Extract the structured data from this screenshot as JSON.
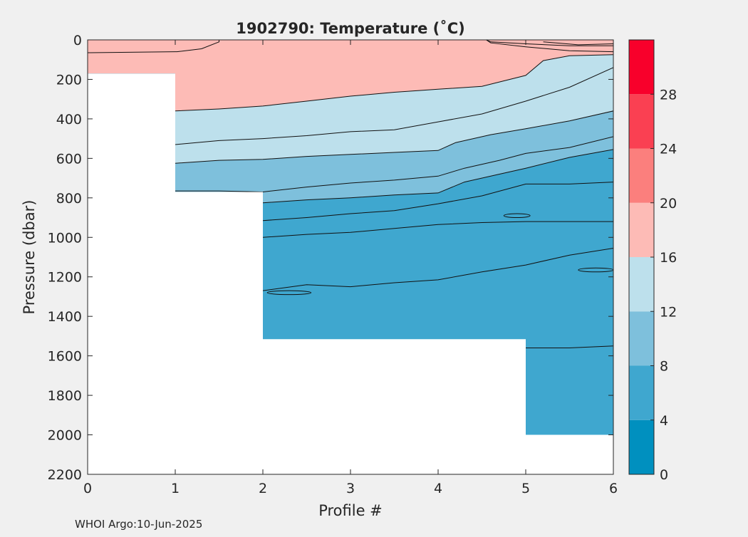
{
  "chart_data": {
    "type": "heatmap",
    "subtype": "filled-contour-section",
    "title": "1902790:  Temperature (˚C)",
    "xlabel": "Profile #",
    "ylabel": "Pressure (dbar)",
    "footer": "WHOI Argo:10-Jun-2025",
    "xlim": [
      0,
      6
    ],
    "ylim": [
      0,
      2200
    ],
    "y_reversed": true,
    "xticks": [
      0,
      1,
      2,
      3,
      4,
      5,
      6
    ],
    "yticks": [
      0,
      200,
      400,
      600,
      800,
      1000,
      1200,
      1400,
      1600,
      1800,
      2000,
      2200
    ],
    "grid": false,
    "colorbar": {
      "levels": [
        0,
        4,
        8,
        12,
        16,
        20,
        24,
        28,
        32
      ],
      "tick_labels": [
        0,
        4,
        8,
        12,
        16,
        20,
        24,
        28
      ],
      "colors": [
        "#0090bf",
        "#3fa7cf",
        "#7ec0dc",
        "#bde0ec",
        "#fdbbb6",
        "#fb7f7d",
        "#fa4052",
        "#f8002b"
      ]
    },
    "profile_max_pressure": [
      {
        "profile": 0,
        "max_pressure": 170
      },
      {
        "profile": 1,
        "max_pressure": 770
      },
      {
        "profile": 2,
        "max_pressure": 1515
      },
      {
        "profile": 3,
        "max_pressure": 1515
      },
      {
        "profile": 4,
        "max_pressure": 1515
      },
      {
        "profile": 5,
        "max_pressure": 2000
      },
      {
        "profile": 6,
        "max_pressure": 2000
      }
    ],
    "isotherms": [
      {
        "temp": 20,
        "points": [
          [
            4.55,
            0
          ],
          [
            4.6,
            10
          ],
          [
            5,
            20
          ],
          [
            5.5,
            30
          ],
          [
            6,
            30
          ]
        ]
      },
      {
        "temp": 20,
        "points": [
          [
            5.2,
            10
          ],
          [
            5.6,
            25
          ],
          [
            6,
            20
          ]
        ]
      },
      {
        "temp": 18,
        "points": [
          [
            0,
            65
          ],
          [
            1,
            60
          ],
          [
            1.02,
            60
          ],
          [
            1.3,
            45
          ],
          [
            1.5,
            10
          ],
          [
            1.5,
            0
          ]
        ]
      },
      {
        "temp": 18,
        "points": [
          [
            4.55,
            0
          ],
          [
            4.6,
            15
          ],
          [
            5,
            35
          ],
          [
            5.5,
            55
          ],
          [
            6,
            60
          ]
        ]
      },
      {
        "temp": 16,
        "points": [
          [
            1,
            360
          ],
          [
            1.5,
            350
          ],
          [
            2,
            335
          ],
          [
            2.5,
            310
          ],
          [
            3,
            285
          ],
          [
            3.5,
            265
          ],
          [
            4,
            250
          ],
          [
            4.5,
            235
          ],
          [
            5,
            180
          ],
          [
            5.2,
            105
          ],
          [
            5.5,
            80
          ],
          [
            6,
            75
          ]
        ]
      },
      {
        "temp": 14,
        "points": [
          [
            1,
            530
          ],
          [
            1.5,
            510
          ],
          [
            2,
            500
          ],
          [
            2.5,
            485
          ],
          [
            3,
            465
          ],
          [
            3.5,
            455
          ],
          [
            4,
            415
          ],
          [
            4.5,
            375
          ],
          [
            5,
            310
          ],
          [
            5.5,
            240
          ],
          [
            6,
            140
          ]
        ]
      },
      {
        "temp": 12,
        "points": [
          [
            1,
            625
          ],
          [
            1.5,
            610
          ],
          [
            2,
            605
          ],
          [
            2.5,
            590
          ],
          [
            3,
            580
          ],
          [
            3.5,
            570
          ],
          [
            4,
            560
          ],
          [
            4.2,
            520
          ],
          [
            4.6,
            480
          ],
          [
            5,
            450
          ],
          [
            5.5,
            410
          ],
          [
            6,
            360
          ]
        ]
      },
      {
        "temp": 10,
        "points": [
          [
            1,
            765
          ],
          [
            1.5,
            765
          ],
          [
            2,
            770
          ],
          [
            2.5,
            745
          ],
          [
            3,
            725
          ],
          [
            3.5,
            710
          ],
          [
            4,
            690
          ],
          [
            4.3,
            650
          ],
          [
            4.7,
            610
          ],
          [
            5,
            575
          ],
          [
            5.5,
            545
          ],
          [
            6,
            490
          ]
        ]
      },
      {
        "temp": 8,
        "points": [
          [
            2,
            825
          ],
          [
            2.5,
            810
          ],
          [
            3,
            800
          ],
          [
            3.5,
            785
          ],
          [
            4,
            775
          ],
          [
            4.3,
            720
          ],
          [
            4.7,
            680
          ],
          [
            5,
            650
          ],
          [
            5.5,
            595
          ],
          [
            6,
            555
          ]
        ]
      },
      {
        "temp": 6,
        "points": [
          [
            2,
            915
          ],
          [
            2.5,
            900
          ],
          [
            3,
            880
          ],
          [
            3.5,
            865
          ],
          [
            4,
            830
          ],
          [
            4.5,
            790
          ],
          [
            5,
            730
          ],
          [
            5.5,
            730
          ],
          [
            6,
            720
          ]
        ]
      },
      {
        "temp": 5,
        "points": [
          [
            2,
            1000
          ],
          [
            2.5,
            985
          ],
          [
            3,
            975
          ],
          [
            3.5,
            955
          ],
          [
            4,
            935
          ],
          [
            4.5,
            925
          ],
          [
            5,
            920
          ],
          [
            5.5,
            920
          ],
          [
            6,
            920
          ]
        ]
      },
      {
        "temp": 4.5,
        "points": [
          [
            2,
            1270
          ],
          [
            2.5,
            1240
          ],
          [
            3,
            1250
          ],
          [
            3.5,
            1230
          ],
          [
            4,
            1215
          ],
          [
            4.5,
            1175
          ],
          [
            5,
            1140
          ],
          [
            5.5,
            1090
          ],
          [
            6,
            1055
          ]
        ]
      },
      {
        "temp": 4,
        "points": [
          [
            5,
            1560
          ],
          [
            5.5,
            1560
          ],
          [
            6,
            1550
          ]
        ]
      }
    ],
    "isolated_contours": [
      {
        "center": [
          4.9,
          890
        ],
        "rx": 0.15,
        "ry": 10
      },
      {
        "center": [
          5.8,
          1165
        ],
        "rx": 0.2,
        "ry": 10
      },
      {
        "center": [
          2.3,
          1280
        ],
        "rx": 0.25,
        "ry": 10
      }
    ]
  }
}
